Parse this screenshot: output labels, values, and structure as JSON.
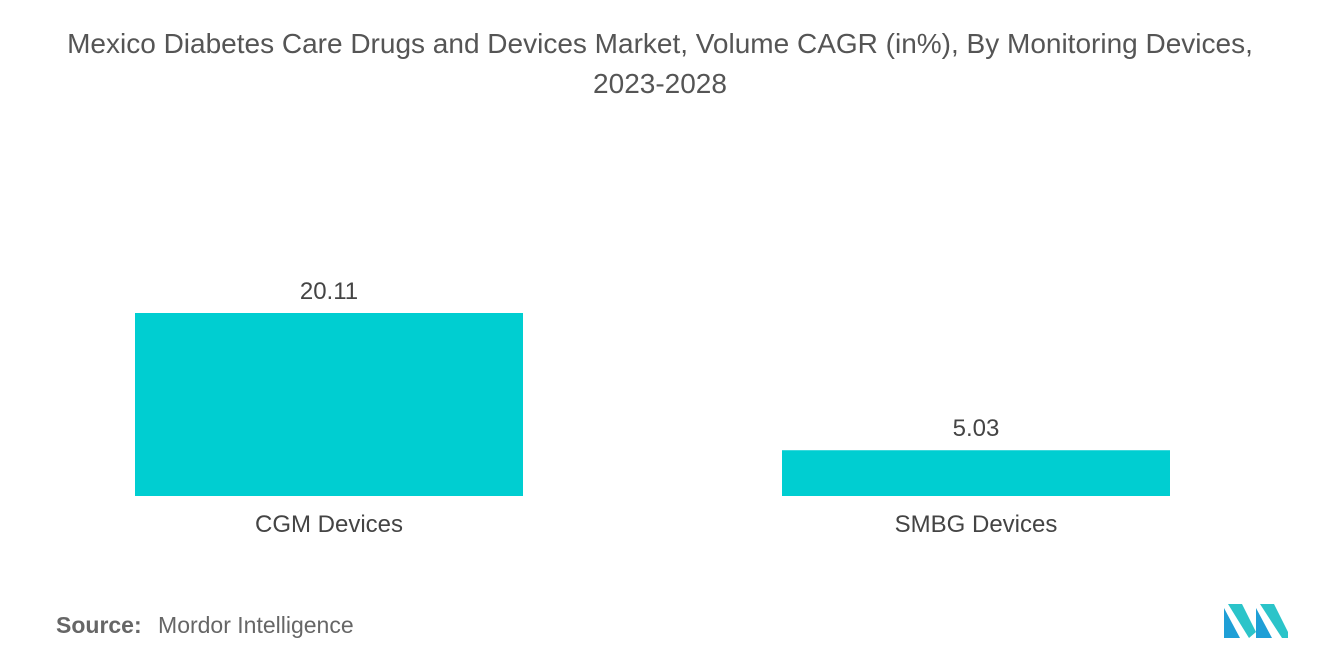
{
  "chart_data": {
    "type": "bar",
    "title": "Mexico Diabetes Care Drugs and Devices Market, Volume CAGR (in%), By Monitoring Devices, 2023-2028",
    "categories": [
      "CGM Devices",
      "SMBG Devices"
    ],
    "values": [
      20.11,
      5.03
    ],
    "value_labels": [
      "20.11",
      "5.03"
    ],
    "xlabel": "",
    "ylabel": "",
    "ylim": [
      0,
      20.11
    ],
    "grid": false,
    "bar_color": "#00CED1"
  },
  "source": {
    "label": "Source:",
    "text": "Mordor Intelligence"
  },
  "logo": {
    "icon": "mordor-intelligence-logo",
    "colors": [
      "#1F9FD6",
      "#2BC4C9"
    ]
  }
}
